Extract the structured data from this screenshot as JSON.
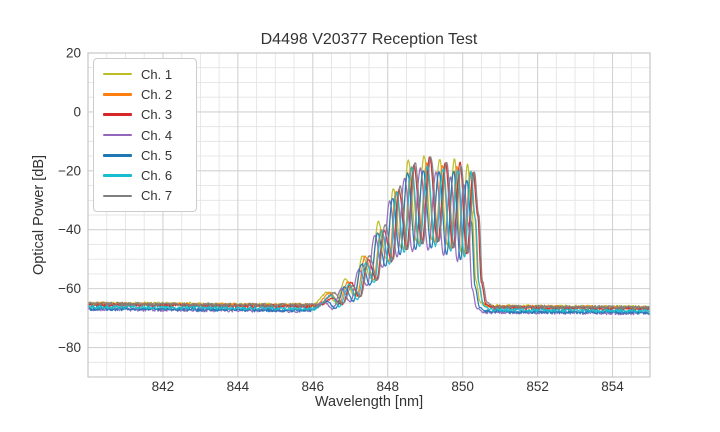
{
  "chart_data": {
    "type": "line",
    "title": "D4498 V20377 Reception Test",
    "xlabel": "Wavelength [nm]",
    "ylabel": "Optical Power [dB]",
    "xlim": [
      840,
      855
    ],
    "ylim": [
      -90,
      20
    ],
    "x_ticks": [
      842,
      844,
      846,
      848,
      850,
      852,
      854
    ],
    "y_ticks": [
      20,
      0,
      -20,
      -40,
      -60,
      -80
    ],
    "x_minor_step_nm": 0.5,
    "y_minor_step_db": 5,
    "grid": "both",
    "legend_position": "upper-left",
    "colors": {
      "text": "#333333",
      "grid_minor": "#e4e4e4",
      "grid_major": "#d2d2d2",
      "spine": "#c6c6c6",
      "background": "#ffffff"
    },
    "description": "Optical reception spectra of 7 channels: flat noise floor near -65 to -67 dB from 840 nm, a fringed signal band with ~0.42 nm peak spacing rising from 846.4 nm to peaks near -15 dB around 848.6-850.2 nm, then a sharp cutoff back to the noise floor at ~850.4 nm.",
    "profile_ref_db": -65.5,
    "profile": [
      [
        846.05,
        -65.3,
        0
      ],
      [
        846.45,
        -62.0,
        1
      ],
      [
        846.68,
        -64.8,
        0
      ],
      [
        846.92,
        -57.5,
        1
      ],
      [
        847.15,
        -62.2,
        0
      ],
      [
        847.38,
        -49.5,
        1
      ],
      [
        847.6,
        -56.5,
        0
      ],
      [
        847.8,
        -38.5,
        1
      ],
      [
        848.01,
        -50.0,
        0
      ],
      [
        848.2,
        -25.5,
        1
      ],
      [
        848.4,
        -46.0,
        0
      ],
      [
        848.6,
        -16.8,
        1
      ],
      [
        848.81,
        -44.0,
        0
      ],
      [
        849.02,
        -15.2,
        1
      ],
      [
        849.23,
        -43.5,
        0
      ],
      [
        849.44,
        -15.8,
        1
      ],
      [
        849.64,
        -45.5,
        0
      ],
      [
        849.83,
        -17.2,
        1
      ],
      [
        850.01,
        -47.5,
        0
      ],
      [
        850.18,
        -18.8,
        1
      ],
      [
        850.3,
        -34.0,
        0
      ],
      [
        850.4,
        -57.0,
        0
      ],
      [
        850.52,
        -64.2,
        0
      ],
      [
        850.7,
        -65.5,
        0
      ]
    ],
    "baseline_slope_db_per_nm": -0.09,
    "sample_step_nm": 0.018,
    "baseline_noise_db": 1.2,
    "signal_noise_db": 0.55,
    "peak_jitter_db": 2.4,
    "channels": [
      {
        "name": "Ch. 1",
        "color": "#bcbd22",
        "offset_nm": -0.05,
        "baseline_db": -65.0,
        "gain": 1.02
      },
      {
        "name": "Ch. 2",
        "color": "#ff7f0e",
        "offset_nm": 0.02,
        "baseline_db": -65.2,
        "gain": 0.98
      },
      {
        "name": "Ch. 3",
        "color": "#d62728",
        "offset_nm": 0.1,
        "baseline_db": -65.5,
        "gain": 1.0
      },
      {
        "name": "Ch. 4",
        "color": "#9467bd",
        "offset_nm": -0.15,
        "baseline_db": -67.0,
        "gain": 0.95
      },
      {
        "name": "Ch. 5",
        "color": "#1f77b4",
        "offset_nm": -0.07,
        "baseline_db": -66.8,
        "gain": 0.97
      },
      {
        "name": "Ch. 6",
        "color": "#17becf",
        "offset_nm": 0.04,
        "baseline_db": -66.2,
        "gain": 0.98
      },
      {
        "name": "Ch. 7",
        "color": "#7f7f7f",
        "offset_nm": 0.13,
        "baseline_db": -65.1,
        "gain": 0.99
      }
    ]
  }
}
